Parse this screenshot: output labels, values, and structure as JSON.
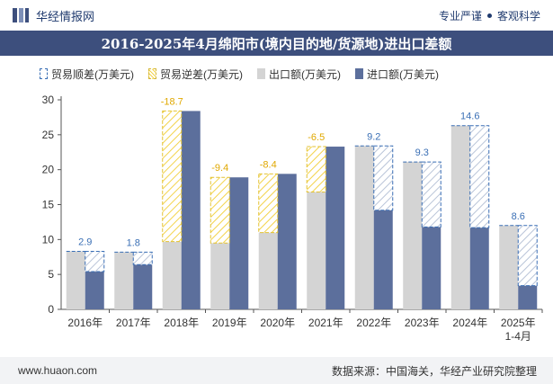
{
  "header": {
    "brand_name": "华经情报网",
    "tagline_left": "专业严谨",
    "tagline_right": "客观科学"
  },
  "title": "2016-2025年4月绵阳市(境内目的地/货源地)进出口差额",
  "legend": {
    "surplus": "贸易顺差(万美元)",
    "deficit": "贸易逆差(万美元)",
    "export": "出口额(万美元)",
    "import": "进口额(万美元)"
  },
  "colors": {
    "header_bg": "#3d4f7d",
    "export": "#d4d4d4",
    "import": "#5c6f9c",
    "surplus_border": "#3a6fb5",
    "deficit_border": "#e3c233",
    "deficit_label": "#e0a800",
    "surplus_label": "#3a6fb5"
  },
  "footer": {
    "website": "www.huaon.com",
    "source": "数据来源：中国海关，华经产业研究院整理"
  },
  "chart_data": {
    "type": "bar",
    "categories": [
      "2016年",
      "2017年",
      "2018年",
      "2019年",
      "2020年",
      "2021年",
      "2022年",
      "2023年",
      "2024年",
      "2025年\n1-4月"
    ],
    "series": [
      {
        "name": "出口额(万美元)",
        "values": [
          8.3,
          8.2,
          9.7,
          9.5,
          11.0,
          16.8,
          23.4,
          21.1,
          26.3,
          12.0
        ]
      },
      {
        "name": "进口额(万美元)",
        "values": [
          5.4,
          6.4,
          28.4,
          18.9,
          19.4,
          23.3,
          14.2,
          11.8,
          11.7,
          3.4
        ]
      },
      {
        "name": "贸易顺差(万美元)",
        "values": [
          2.9,
          1.8,
          null,
          null,
          null,
          null,
          9.2,
          9.3,
          14.6,
          8.6
        ]
      },
      {
        "name": "贸易逆差(万美元)",
        "values": [
          null,
          null,
          -18.7,
          -9.4,
          -8.4,
          -6.5,
          null,
          null,
          null,
          null
        ]
      }
    ],
    "ylim": [
      0,
      30
    ],
    "yticks": [
      0,
      5,
      10,
      15,
      20,
      25,
      30
    ],
    "grid": false,
    "legend_position": "top"
  }
}
